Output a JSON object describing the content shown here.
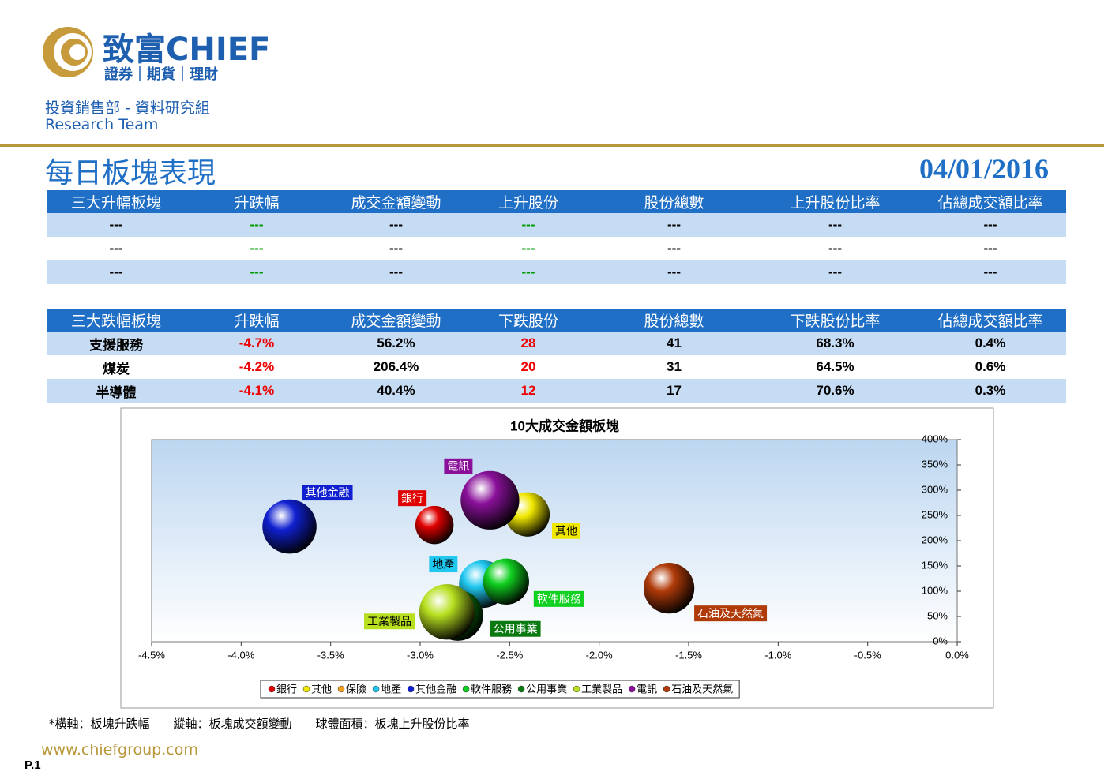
{
  "header": {
    "brand": "致富CHIEF",
    "tagline": "證券｜期貨｜理財",
    "department": "投資銷售部 - 資料研究組",
    "team": "Research Team",
    "title": "每日板塊表現",
    "date": "04/01/2016"
  },
  "table1": {
    "headers": [
      "三大升幅板塊",
      "升跌幅",
      "成交金額變動",
      "上升股份",
      "股份總數",
      "上升股份比率",
      "佔總成交額比率"
    ],
    "rows": [
      [
        "---",
        "---",
        "---",
        "---",
        "---",
        "---",
        "---"
      ],
      [
        "---",
        "---",
        "---",
        "---",
        "---",
        "---",
        "---"
      ],
      [
        "---",
        "---",
        "---",
        "---",
        "---",
        "---",
        "---"
      ]
    ]
  },
  "table2": {
    "headers": [
      "三大跌幅板塊",
      "升跌幅",
      "成交金額變動",
      "下跌股份",
      "股份總數",
      "下跌股份比率",
      "佔總成交額比率"
    ],
    "rows": [
      [
        "支援服務",
        "-4.7%",
        "56.2%",
        "28",
        "41",
        "68.3%",
        "0.4%"
      ],
      [
        "煤炭",
        "-4.2%",
        "206.4%",
        "20",
        "31",
        "64.5%",
        "0.6%"
      ],
      [
        "半導體",
        "-4.1%",
        "40.4%",
        "12",
        "17",
        "70.6%",
        "0.3%"
      ]
    ]
  },
  "chart_data": {
    "type": "bubble",
    "title": "10大成交金額板塊",
    "xlim": [
      -4.5,
      0
    ],
    "ylim": [
      0,
      400
    ],
    "xticks": [
      {
        "value": -4.5,
        "label": "-4.5%"
      },
      {
        "value": -4,
        "label": "-4.0%"
      },
      {
        "value": -3.5,
        "label": "-3.5%"
      },
      {
        "value": -3,
        "label": "-3.0%"
      },
      {
        "value": -2.5,
        "label": "-2.5%"
      },
      {
        "value": -2,
        "label": "-2.0%"
      },
      {
        "value": -1.5,
        "label": "-1.5%"
      },
      {
        "value": -1,
        "label": "-1.0%"
      },
      {
        "value": -0.5,
        "label": "-0.5%"
      },
      {
        "value": 0,
        "label": "0.0%"
      }
    ],
    "yticks": [
      {
        "value": 0,
        "label": "0%"
      },
      {
        "value": 50,
        "label": "50%"
      },
      {
        "value": 100,
        "label": "100%"
      },
      {
        "value": 150,
        "label": "150%"
      },
      {
        "value": 200,
        "label": "200%"
      },
      {
        "value": 250,
        "label": "250%"
      },
      {
        "value": 300,
        "label": "300%"
      },
      {
        "value": 350,
        "label": "350%"
      },
      {
        "value": 400,
        "label": "400%"
      }
    ],
    "series": [
      {
        "name": "銀行",
        "color": "#e00000",
        "x": -2.92,
        "y": 231,
        "size": 29
      },
      {
        "name": "其他",
        "color": "#f0e800",
        "x": -2.4,
        "y": 252,
        "size": 39
      },
      {
        "name": "保險",
        "color": "#f0a020",
        "x": null,
        "y": null,
        "size": null
      },
      {
        "name": "地產",
        "color": "#20c8f0",
        "x": -2.65,
        "y": 114,
        "size": 45
      },
      {
        "name": "其他金融",
        "color": "#1020d0",
        "x": -3.73,
        "y": 228,
        "size": 58
      },
      {
        "name": "軟件服務",
        "color": "#10d020",
        "x": -2.52,
        "y": 119,
        "size": 42
      },
      {
        "name": "公用事業",
        "color": "#0a7a10",
        "x": -2.79,
        "y": 52,
        "size": 51
      },
      {
        "name": "工業製品",
        "color": "#b8e020",
        "x": -2.85,
        "y": 59,
        "size": 61
      },
      {
        "name": "電訊",
        "color": "#8a109a",
        "x": -2.61,
        "y": 280,
        "size": 68
      },
      {
        "name": "石油及天然氣",
        "color": "#b03a08",
        "x": -1.61,
        "y": 106,
        "size": 51
      }
    ]
  },
  "footer": {
    "note": "*橫軸：板塊升跌幅　　縱軸：板塊成交額變動　　球體面積：板塊上升股份比率",
    "website": "www.chiefgroup.com",
    "page": "P.1"
  }
}
